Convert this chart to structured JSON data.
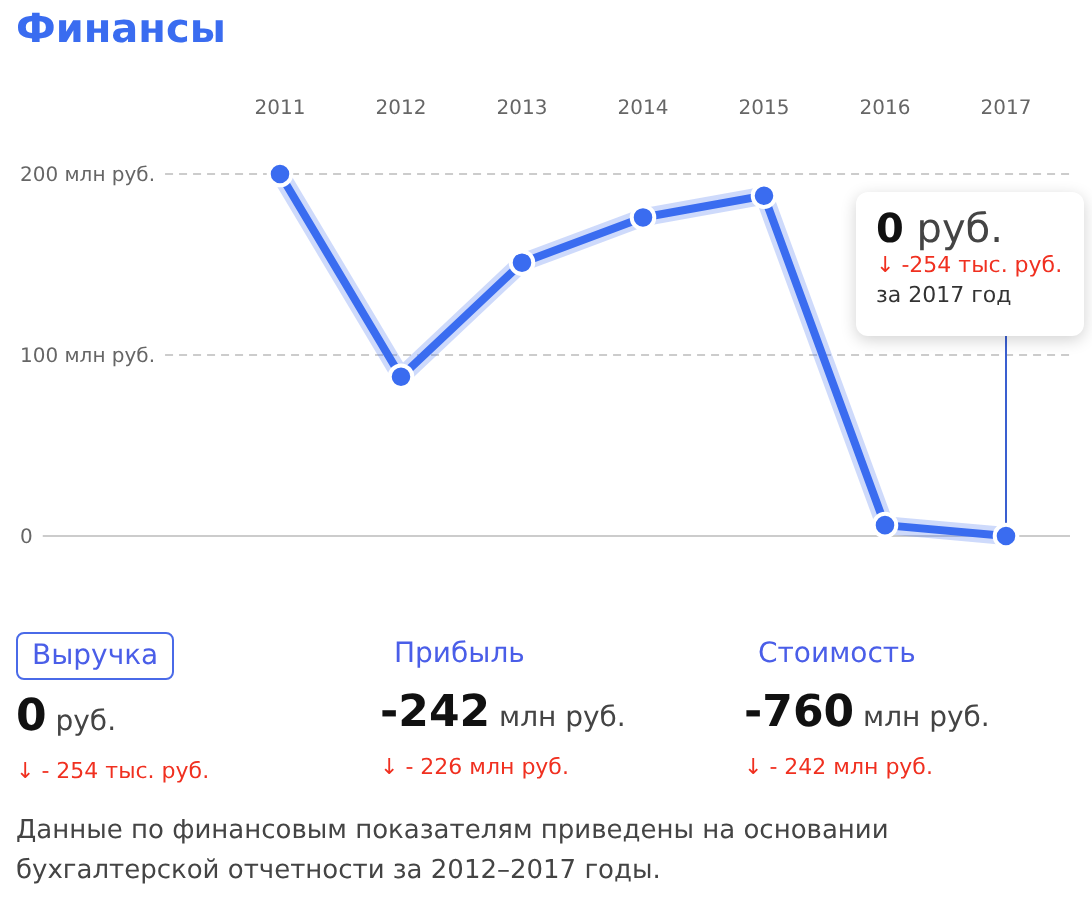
{
  "chart_data": {
    "type": "line",
    "title": "Финансы",
    "categories": [
      "2011",
      "2012",
      "2013",
      "2014",
      "2015",
      "2016",
      "2017"
    ],
    "series": [
      {
        "color": "#3a6cf0",
        "values": [
          200,
          88,
          151,
          176,
          188,
          6,
          0
        ]
      }
    ],
    "ylim": [
      0,
      200
    ],
    "yticks": [
      {
        "value": 0,
        "label": "0"
      },
      {
        "value": 100,
        "label": "100 млн руб."
      },
      {
        "value": 200,
        "label": "200 млн руб."
      }
    ],
    "grid": "y",
    "marker": "circle",
    "line_style": "solid",
    "ref_lines": [
      {
        "axis": "x",
        "value": "2017",
        "color": "#3a5fd0"
      }
    ],
    "annotations": [
      "0 руб.",
      "↓ -254 тыс. руб.",
      "за 2017 год",
      "Выручка",
      "0 руб.",
      "↓ - 254 тыс. руб.",
      "Прибыль",
      "-242 млн руб.",
      "↓ - 226 млн руб.",
      "Стоимость",
      "-760 млн руб.",
      "↓ - 242 млн руб.",
      "Данные по финансовым показателям приведены на основании бухгалтерской отчетности за 2012–2017 годы."
    ]
  }
}
